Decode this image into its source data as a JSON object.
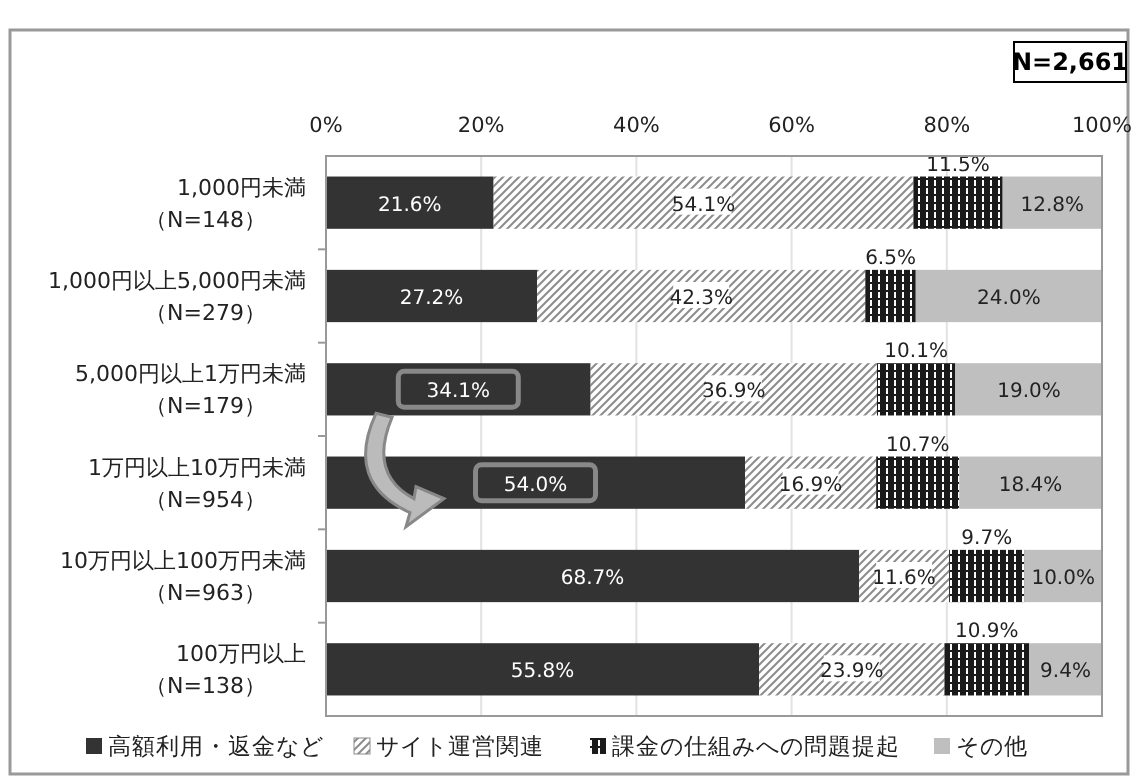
{
  "chart_data": {
    "type": "bar",
    "orientation": "horizontal",
    "stacked": true,
    "grid": "x",
    "legend": "bottom",
    "categories": [
      "1,000円未満（N=148）",
      "1,000円以上5,000円未満（N=279）",
      "5,000円以上1万円未満（N=179）",
      "1万円以上10万円未満（N=954）",
      "10万円以上100万円未満（N=963）",
      "100万円以上（N=138）"
    ],
    "series": [
      {
        "name": "高額利用・返金など",
        "color": "#333333",
        "values": [
          21.6,
          27.2,
          34.1,
          54.0,
          68.7,
          55.8
        ],
        "value_labels": [
          "21.6%",
          "27.2%",
          "34.1%",
          "54.0%",
          "68.7%",
          "55.8%"
        ]
      },
      {
        "name": "サイト運営関連",
        "color": "#8c8c8c",
        "values": [
          54.1,
          42.3,
          36.9,
          16.9,
          11.6,
          23.9
        ],
        "value_labels": [
          "54.1%",
          "42.3%",
          "36.9%",
          "16.9%",
          "11.6%",
          "23.9%"
        ]
      },
      {
        "name": "課金の仕組みへの問題提起",
        "color": "#1a1a1a",
        "values": [
          11.5,
          6.5,
          10.1,
          10.7,
          9.7,
          10.9
        ],
        "value_labels": [
          "11.5%",
          "6.5%",
          "10.1%",
          "10.7%",
          "9.7%",
          "10.9%"
        ]
      },
      {
        "name": "その他",
        "color": "#bfbfbf",
        "values": [
          12.8,
          24.0,
          19.0,
          18.4,
          10.0,
          9.4
        ],
        "value_labels": [
          "12.8%",
          "24.0%",
          "19.0%",
          "18.4%",
          "10.0%",
          "9.4%"
        ]
      }
    ],
    "xlim": [
      0,
      100
    ],
    "xticks": [
      {
        "value": 0,
        "label": "0%"
      },
      {
        "value": 20,
        "label": "20%"
      },
      {
        "value": 40,
        "label": "40%"
      },
      {
        "value": 60,
        "label": "60%"
      },
      {
        "value": 80,
        "label": "80%"
      },
      {
        "value": 100,
        "label": "100%"
      }
    ],
    "annotations": [
      "N=2,661"
    ]
  }
}
